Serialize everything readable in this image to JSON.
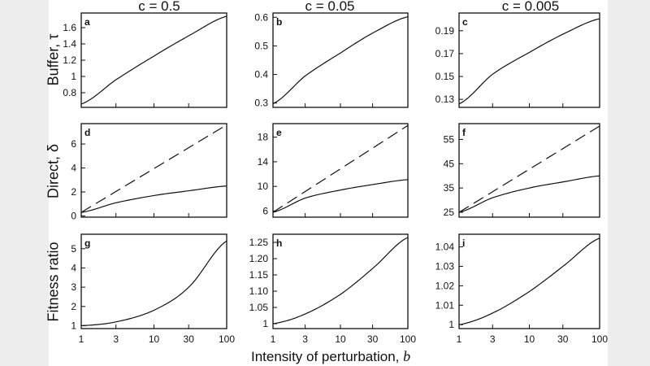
{
  "figure": {
    "column_titles": [
      "c = 0.5",
      "c = 0.05",
      "c = 0.005"
    ],
    "row_labels": [
      "Buffer, τ",
      "Direct, δ",
      "Fitness ratio"
    ],
    "x_label_prefix": "Intensity of perturbation, ",
    "x_label_var": "b"
  },
  "chart_data": [
    {
      "panel": "a",
      "type": "line",
      "xscale": "log",
      "xlim": [
        1,
        100
      ],
      "ylim": [
        0.62,
        1.78
      ],
      "yticks": [
        0.8,
        1,
        1.2,
        1.4,
        1.6
      ],
      "ytick_labels": [
        "0.8",
        "1",
        "1.2",
        "1.4",
        "1.6"
      ],
      "series": [
        {
          "name": "buffer",
          "style": "solid",
          "x": [
            1,
            3,
            10,
            30,
            100
          ],
          "y": [
            0.66,
            0.96,
            1.25,
            1.5,
            1.74
          ]
        }
      ]
    },
    {
      "panel": "b",
      "type": "line",
      "xscale": "log",
      "xlim": [
        1,
        100
      ],
      "ylim": [
        0.285,
        0.615
      ],
      "yticks": [
        0.3,
        0.4,
        0.5,
        0.6
      ],
      "ytick_labels": [
        "0.3",
        "0.4",
        "0.5",
        "0.6"
      ],
      "series": [
        {
          "name": "buffer",
          "style": "solid",
          "x": [
            1,
            3,
            10,
            30,
            100
          ],
          "y": [
            0.298,
            0.395,
            0.475,
            0.545,
            0.602
          ]
        }
      ]
    },
    {
      "panel": "c",
      "type": "line",
      "xscale": "log",
      "xlim": [
        1,
        100
      ],
      "ylim": [
        0.123,
        0.2055
      ],
      "yticks": [
        0.13,
        0.15,
        0.17,
        0.19
      ],
      "ytick_labels": [
        "0.13",
        "0.15",
        "0.17",
        "0.19"
      ],
      "series": [
        {
          "name": "buffer",
          "style": "solid",
          "x": [
            1,
            3,
            10,
            30,
            100
          ],
          "y": [
            0.126,
            0.152,
            0.171,
            0.187,
            0.2005
          ]
        }
      ]
    },
    {
      "panel": "d",
      "type": "line",
      "xscale": "log",
      "xlim": [
        1,
        100
      ],
      "ylim": [
        -0.1,
        7.7
      ],
      "yticks": [
        0,
        2,
        4,
        6
      ],
      "ytick_labels": [
        "0",
        "2",
        "4",
        "6"
      ],
      "series": [
        {
          "name": "direct",
          "style": "dashed",
          "x": [
            1,
            100
          ],
          "y": [
            0.3,
            7.6
          ]
        },
        {
          "name": "buffered",
          "style": "solid",
          "x": [
            1,
            3,
            10,
            30,
            100
          ],
          "y": [
            0.3,
            1.1,
            1.7,
            2.1,
            2.5
          ]
        }
      ]
    },
    {
      "panel": "e",
      "type": "line",
      "xscale": "log",
      "xlim": [
        1,
        100
      ],
      "ylim": [
        5,
        20.2
      ],
      "yticks": [
        6,
        10,
        14,
        18
      ],
      "ytick_labels": [
        "6",
        "10",
        "14",
        "18"
      ],
      "series": [
        {
          "name": "direct",
          "style": "dashed",
          "x": [
            1,
            100
          ],
          "y": [
            5.8,
            19.9
          ]
        },
        {
          "name": "buffered",
          "style": "solid",
          "x": [
            1,
            3,
            10,
            30,
            100
          ],
          "y": [
            5.8,
            8.1,
            9.4,
            10.3,
            11.1
          ]
        }
      ]
    },
    {
      "panel": "f",
      "type": "line",
      "xscale": "log",
      "xlim": [
        1,
        100
      ],
      "ylim": [
        23,
        61.5
      ],
      "yticks": [
        25,
        35,
        45,
        55
      ],
      "ytick_labels": [
        "25",
        "35",
        "45",
        "55"
      ],
      "series": [
        {
          "name": "direct",
          "style": "dashed",
          "x": [
            1,
            100
          ],
          "y": [
            25,
            60.5
          ]
        },
        {
          "name": "buffered",
          "style": "solid",
          "x": [
            1,
            3,
            10,
            30,
            100
          ],
          "y": [
            25,
            31,
            35,
            37.5,
            40
          ]
        }
      ]
    },
    {
      "panel": "g",
      "type": "line",
      "xscale": "log",
      "xlim": [
        1,
        100
      ],
      "ylim": [
        0.85,
        5.75
      ],
      "yticks": [
        1,
        2,
        3,
        4,
        5
      ],
      "ytick_labels": [
        "1",
        "2",
        "3",
        "4",
        "5"
      ],
      "xticks": [
        1,
        3,
        10,
        30,
        100
      ],
      "xtick_labels": [
        "1",
        "3",
        "10",
        "30",
        "100"
      ],
      "series": [
        {
          "name": "fitness",
          "style": "solid",
          "x": [
            1,
            3,
            10,
            30,
            100
          ],
          "y": [
            1.0,
            1.2,
            1.8,
            3.0,
            5.4
          ]
        }
      ]
    },
    {
      "panel": "h",
      "type": "line",
      "xscale": "log",
      "xlim": [
        1,
        100
      ],
      "ylim": [
        0.985,
        1.275
      ],
      "yticks": [
        1,
        1.05,
        1.1,
        1.15,
        1.2,
        1.25
      ],
      "ytick_labels": [
        "1",
        "1.05",
        "1.10",
        "1.15",
        "1.20",
        "1.25"
      ],
      "xticks": [
        1,
        3,
        10,
        30,
        100
      ],
      "xtick_labels": [
        "1",
        "3",
        "10",
        "30",
        "100"
      ],
      "series": [
        {
          "name": "fitness",
          "style": "solid",
          "x": [
            1,
            3,
            10,
            30,
            100
          ],
          "y": [
            1.0,
            1.03,
            1.09,
            1.17,
            1.265
          ]
        }
      ]
    },
    {
      "panel": "i",
      "type": "line",
      "xscale": "log",
      "xlim": [
        1,
        100
      ],
      "ylim": [
        0.998,
        1.0465
      ],
      "yticks": [
        1,
        1.01,
        1.02,
        1.03,
        1.04
      ],
      "ytick_labels": [
        "1",
        "1.01",
        "1.02",
        "1.03",
        "1.04"
      ],
      "xticks": [
        1,
        3,
        10,
        30,
        100
      ],
      "xtick_labels": [
        "1",
        "3",
        "10",
        "30",
        "100"
      ],
      "series": [
        {
          "name": "fitness",
          "style": "solid",
          "x": [
            1,
            3,
            10,
            30,
            100
          ],
          "y": [
            1.0,
            1.006,
            1.017,
            1.03,
            1.0445
          ]
        }
      ]
    }
  ]
}
